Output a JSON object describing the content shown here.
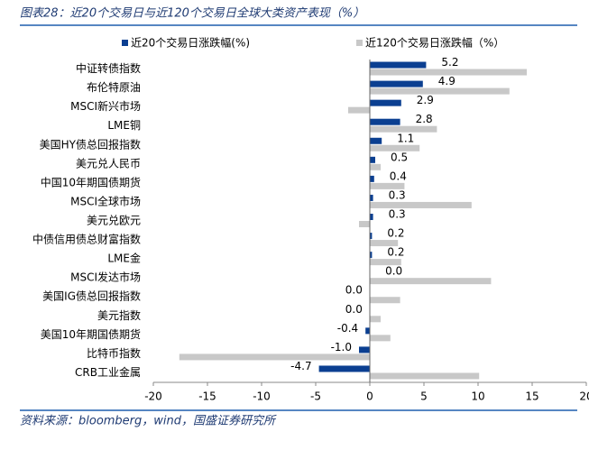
{
  "header": {
    "title": "图表28：近20个交易日与近120个交易日全球大类资产表现（%）"
  },
  "chart_data": {
    "type": "hbar",
    "categories": [
      "中证转债指数",
      "布伦特原油",
      "MSCI新兴市场",
      "LME铜",
      "美国HY债总回报指数",
      "美元兑人民币",
      "中国10年期国债期货",
      "MSCI全球市场",
      "美元兑欧元",
      "中债信用债总财富指数",
      "LME金",
      "MSCI发达市场",
      "美国IG债总回报指数",
      "美元指数",
      "美国10年期国债期货",
      "比特币指数",
      "CRB工业金属"
    ],
    "series": [
      {
        "name": "近20个交易日涨跌幅(%)",
        "color": "#0b3f91",
        "values": [
          5.2,
          4.9,
          2.9,
          2.8,
          1.1,
          0.5,
          0.4,
          0.3,
          0.3,
          0.2,
          0.2,
          0.01,
          -0.01,
          -0.01,
          -0.4,
          -1.0,
          -4.7
        ],
        "value_labels": [
          "5.2",
          "4.9",
          "2.9",
          "2.8",
          "1.1",
          "0.5",
          "0.4",
          "0.3",
          "0.3",
          "0.2",
          "0.2",
          "0.0",
          "0.0",
          "0.0",
          "-0.4",
          "-1.0",
          "-4.7"
        ]
      },
      {
        "name": "近120个交易日涨跌幅（%）",
        "color": "#c8c8c8",
        "values": [
          14.5,
          12.9,
          -2.0,
          6.2,
          4.6,
          1.0,
          3.2,
          9.4,
          -1.0,
          2.6,
          2.9,
          11.2,
          2.8,
          1.0,
          1.9,
          -17.6,
          10.1
        ]
      }
    ],
    "xlim": [
      -20,
      20
    ],
    "xticks": [
      -20,
      -15,
      -10,
      -5,
      0,
      5,
      10,
      15,
      20
    ]
  },
  "footer": {
    "source": "资料来源：bloomberg，wind，国盛证券研究所"
  }
}
